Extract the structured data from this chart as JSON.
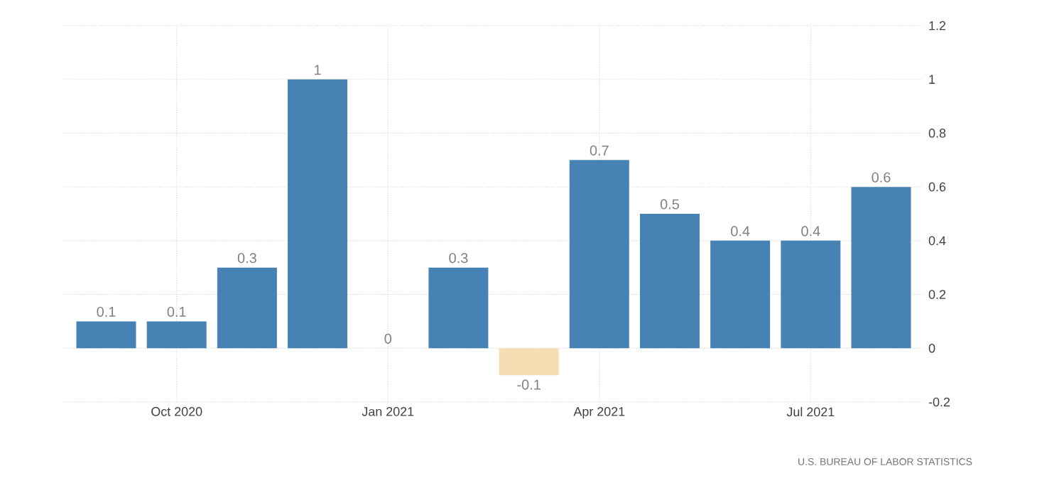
{
  "chart_data": {
    "type": "bar",
    "categories": [
      null,
      "Oct 2020",
      null,
      null,
      "Jan 2021",
      null,
      null,
      "Apr 2021",
      null,
      null,
      "Jul 2021",
      null
    ],
    "values": [
      0.1,
      0.1,
      0.3,
      1,
      0,
      0.3,
      -0.1,
      0.7,
      0.5,
      0.4,
      0.4,
      0.6
    ],
    "colors": [
      "#4682b4",
      "#4682b4",
      "#4682b4",
      "#4682b4",
      "#4682b4",
      "#4682b4",
      "#f5deb3",
      "#4682b4",
      "#4682b4",
      "#4682b4",
      "#4682b4",
      "#4682b4"
    ],
    "ylim": [
      -0.2,
      1.2
    ],
    "yticks": [
      -0.2,
      0,
      0.2,
      0.4,
      0.6,
      0.8,
      1,
      1.2
    ],
    "grid": true,
    "data_labels": true,
    "annotations": [
      "U.S. BUREAU OF LABOR STATISTICS"
    ]
  }
}
